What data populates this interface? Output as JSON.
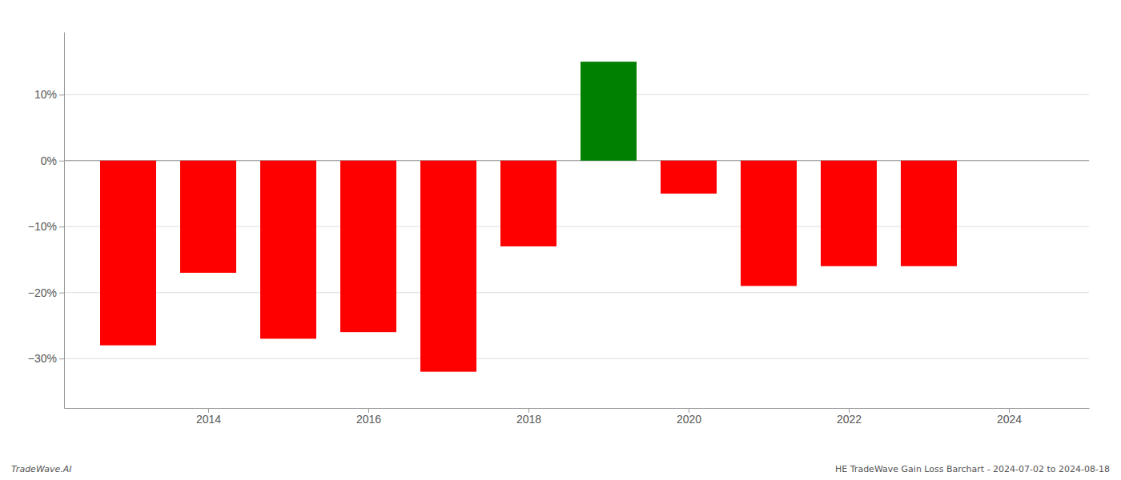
{
  "chart_data": {
    "type": "bar",
    "x": [
      2013,
      2014,
      2015,
      2016,
      2017,
      2018,
      2019,
      2020,
      2021,
      2022,
      2023
    ],
    "values": [
      -0.28,
      -0.17,
      -0.27,
      -0.26,
      -0.32,
      -0.13,
      0.15,
      -0.05,
      -0.19,
      -0.16,
      -0.16
    ],
    "colors": [
      "#ff0000",
      "#ff0000",
      "#ff0000",
      "#ff0000",
      "#ff0000",
      "#ff0000",
      "#008000",
      "#ff0000",
      "#ff0000",
      "#ff0000",
      "#ff0000"
    ],
    "xlim": [
      2012.2,
      2025.0
    ],
    "xticks": [
      2014,
      2016,
      2018,
      2020,
      2022,
      2024
    ],
    "ylim": [
      -0.375,
      0.195
    ],
    "yticks": [
      {
        "value": -0.3,
        "label": "−30%"
      },
      {
        "value": -0.2,
        "label": "−20%"
      },
      {
        "value": -0.1,
        "label": "−10%"
      },
      {
        "value": 0.0,
        "label": "0%"
      },
      {
        "value": 0.1,
        "label": "10%"
      }
    ],
    "grid": true,
    "annotations": [
      "TradeWave.AI",
      "HE TradeWave Gain Loss Barchart - 2024-07-02 to 2024-08-18"
    ]
  }
}
